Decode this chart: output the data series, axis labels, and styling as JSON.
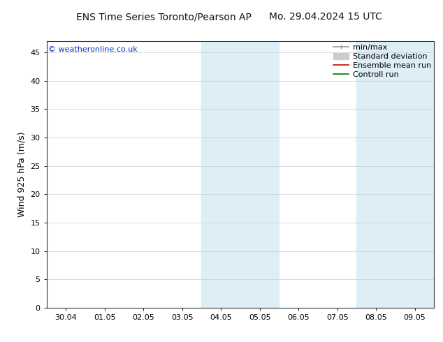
{
  "title_left": "ENS Time Series Toronto/Pearson AP",
  "title_right": "Mo. 29.04.2024 15 UTC",
  "ylabel": "Wind 925 hPa (m/s)",
  "watermark": "© weatheronline.co.uk",
  "xtick_labels": [
    "30.04",
    "01.05",
    "02.05",
    "03.05",
    "04.05",
    "05.05",
    "06.05",
    "07.05",
    "08.05",
    "09.05"
  ],
  "xtick_positions": [
    0,
    1,
    2,
    3,
    4,
    5,
    6,
    7,
    8,
    9
  ],
  "ylim": [
    0,
    47
  ],
  "yticks": [
    0,
    5,
    10,
    15,
    20,
    25,
    30,
    35,
    40,
    45
  ],
  "xlim": [
    -0.5,
    9.5
  ],
  "shaded_regions": [
    {
      "xmin": 3.5,
      "xmax": 5.5,
      "color": "#ddeef7"
    },
    {
      "xmin": 7.5,
      "xmax": 9.5,
      "color": "#ddeef7"
    }
  ],
  "background_color": "#ffffff",
  "plot_bg_color": "#ffffff",
  "legend_items": [
    {
      "label": "min/max",
      "color": "#999999",
      "lw": 1.2
    },
    {
      "label": "Standard deviation",
      "color": "#cccccc",
      "lw": 6
    },
    {
      "label": "Ensemble mean run",
      "color": "#cc0000",
      "lw": 1.2
    },
    {
      "label": "Controll run",
      "color": "#007700",
      "lw": 1.2
    }
  ],
  "title_fontsize": 10,
  "axis_label_fontsize": 9,
  "tick_fontsize": 8,
  "legend_fontsize": 8,
  "watermark_color": "#0033cc",
  "watermark_fontsize": 8,
  "grid_color": "#cccccc",
  "spine_color": "#333333",
  "tick_color": "#333333"
}
